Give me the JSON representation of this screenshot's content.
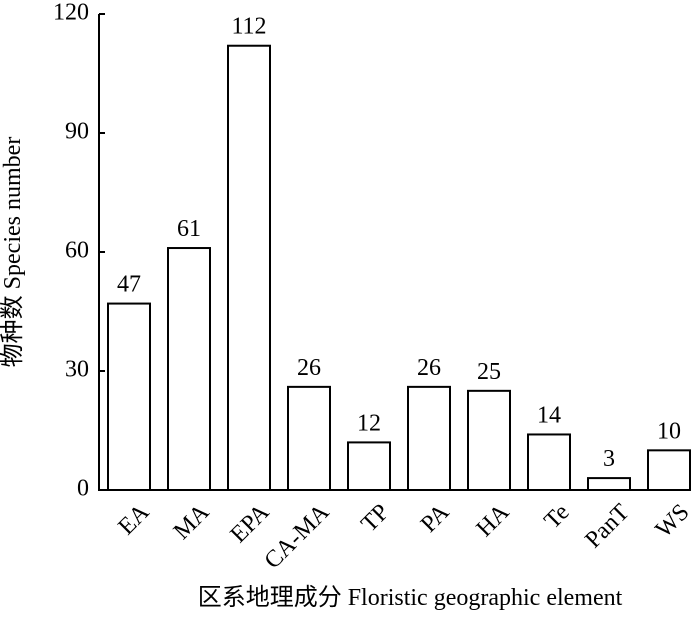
{
  "chart_data": {
    "type": "bar",
    "x_label": "区系地理成分 Floristic geographic element",
    "y_label": "物种数 Species number",
    "categories": [
      "EA",
      "MA",
      "EPA",
      "CA-MA",
      "TP",
      "PA",
      "HA",
      "Te",
      "PanT",
      "WS"
    ],
    "values": [
      47,
      61,
      112,
      26,
      12,
      26,
      25,
      14,
      3,
      10
    ],
    "color": "#ffffff",
    "ylim": [
      0,
      120
    ],
    "yticks": [
      0,
      30,
      60,
      90,
      120
    ],
    "grid": false
  }
}
